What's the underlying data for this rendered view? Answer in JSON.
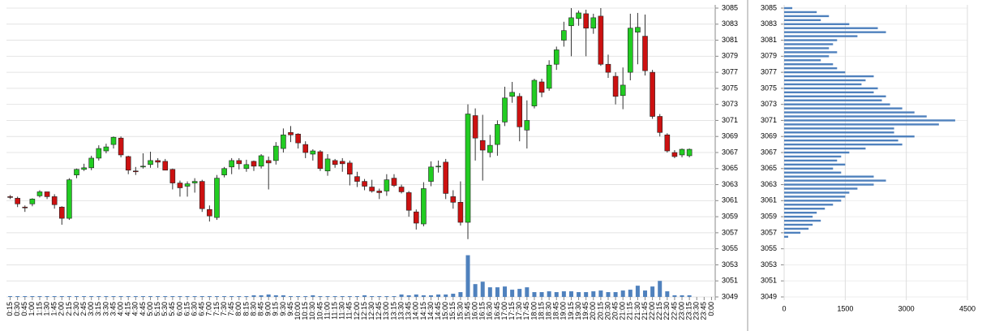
{
  "chart_data": [
    {
      "type": "candlestick",
      "categories": [
        "0:15",
        "0:30",
        "0:45",
        "1:00",
        "1:15",
        "1:30",
        "1:45",
        "2:00",
        "2:15",
        "2:30",
        "2:45",
        "3:00",
        "3:15",
        "3:30",
        "3:45",
        "4:00",
        "4:15",
        "4:30",
        "4:45",
        "5:00",
        "5:15",
        "5:30",
        "5:45",
        "6:00",
        "6:15",
        "6:30",
        "6:45",
        "7:00",
        "7:15",
        "7:30",
        "7:45",
        "8:00",
        "8:15",
        "8:30",
        "8:45",
        "9:00",
        "9:15",
        "9:30",
        "9:45",
        "10:00",
        "10:15",
        "10:30",
        "10:45",
        "11:00",
        "11:15",
        "11:30",
        "11:45",
        "12:00",
        "12:15",
        "12:30",
        "12:45",
        "13:00",
        "13:15",
        "13:30",
        "13:45",
        "14:00",
        "14:15",
        "14:30",
        "14:45",
        "15:00",
        "15:15",
        "15:30",
        "15:45",
        "16:00",
        "16:15",
        "16:30",
        "16:45",
        "17:00",
        "17:15",
        "17:30",
        "17:45",
        "18:00",
        "18:15",
        "18:30",
        "18:45",
        "19:00",
        "19:15",
        "19:30",
        "19:45",
        "20:00",
        "20:15",
        "20:30",
        "20:45",
        "21:00",
        "21:15",
        "21:30",
        "21:45",
        "22:00",
        "22:15",
        "22:30",
        "22:45",
        "23:00",
        "23:15",
        "23:30",
        "23:45",
        "0:00"
      ],
      "ohlc": [
        [
          3061.5,
          3061.7,
          3061.2,
          3061.4
        ],
        [
          3061.3,
          3061.5,
          3060.2,
          3060.6
        ],
        [
          3060.2,
          3060.4,
          3059.6,
          3060.1
        ],
        [
          3060.6,
          3061.3,
          3060.3,
          3061.2
        ],
        [
          3061.6,
          3062.3,
          3061.4,
          3062.1
        ],
        [
          3062.1,
          3062.1,
          3061.2,
          3061.5
        ],
        [
          3061.5,
          3061.8,
          3060.0,
          3060.5
        ],
        [
          3060.2,
          3060.3,
          3058.0,
          3058.8
        ],
        [
          3058.8,
          3063.8,
          3058.6,
          3063.6
        ],
        [
          3064.2,
          3065.0,
          3063.8,
          3064.9
        ],
        [
          3064.9,
          3065.6,
          3064.7,
          3065.1
        ],
        [
          3065.1,
          3066.6,
          3064.8,
          3066.3
        ],
        [
          3066.3,
          3067.9,
          3066.0,
          3067.5
        ],
        [
          3067.2,
          3068.1,
          3066.9,
          3067.7
        ],
        [
          3068.0,
          3069.0,
          3067.5,
          3068.9
        ],
        [
          3068.8,
          3069.0,
          3066.4,
          3066.7
        ],
        [
          3066.5,
          3066.6,
          3064.3,
          3064.8
        ],
        [
          3064.7,
          3065.2,
          3064.2,
          3064.6
        ],
        [
          3065.2,
          3066.9,
          3065.0,
          3065.3
        ],
        [
          3065.5,
          3067.1,
          3065.1,
          3066.0
        ],
        [
          3066.0,
          3066.3,
          3065.1,
          3065.8
        ],
        [
          3065.9,
          3066.2,
          3064.8,
          3064.8
        ],
        [
          3064.9,
          3065.0,
          3062.4,
          3063.2
        ],
        [
          3063.2,
          3063.5,
          3061.5,
          3062.6
        ],
        [
          3062.8,
          3063.4,
          3061.5,
          3063.1
        ],
        [
          3063.2,
          3063.8,
          3062.0,
          3063.4
        ],
        [
          3063.4,
          3063.6,
          3059.6,
          3060.0
        ],
        [
          3059.9,
          3060.4,
          3058.4,
          3059.1
        ],
        [
          3058.9,
          3064.2,
          3058.6,
          3063.8
        ],
        [
          3064.2,
          3065.2,
          3063.9,
          3065.0
        ],
        [
          3065.2,
          3066.3,
          3064.3,
          3066.0
        ],
        [
          3066.0,
          3066.3,
          3064.9,
          3065.6
        ],
        [
          3065.0,
          3066.1,
          3064.6,
          3065.5
        ],
        [
          3065.9,
          3066.0,
          3064.7,
          3065.3
        ],
        [
          3065.3,
          3066.8,
          3065.0,
          3066.6
        ],
        [
          3066.0,
          3066.5,
          3062.4,
          3065.7
        ],
        [
          3066.0,
          3068.3,
          3065.5,
          3067.8
        ],
        [
          3067.5,
          3070.0,
          3067.0,
          3069.2
        ],
        [
          3069.5,
          3070.3,
          3068.3,
          3069.2
        ],
        [
          3069.3,
          3069.4,
          3067.5,
          3068.2
        ],
        [
          3068.0,
          3068.4,
          3066.3,
          3067.0
        ],
        [
          3066.8,
          3067.4,
          3066.0,
          3067.2
        ],
        [
          3067.1,
          3067.3,
          3064.7,
          3065.0
        ],
        [
          3064.7,
          3066.8,
          3064.1,
          3066.2
        ],
        [
          3066.0,
          3066.2,
          3065.1,
          3065.5
        ],
        [
          3065.9,
          3066.3,
          3064.6,
          3065.6
        ],
        [
          3065.7,
          3066.0,
          3062.9,
          3064.3
        ],
        [
          3064.0,
          3064.6,
          3062.7,
          3063.4
        ],
        [
          3063.4,
          3063.7,
          3062.3,
          3062.8
        ],
        [
          3062.7,
          3063.6,
          3062.0,
          3062.2
        ],
        [
          3062.2,
          3062.5,
          3061.2,
          3062.0
        ],
        [
          3062.2,
          3064.3,
          3061.6,
          3063.6
        ],
        [
          3063.8,
          3064.3,
          3062.7,
          3062.9
        ],
        [
          3062.7,
          3063.0,
          3061.9,
          3062.1
        ],
        [
          3062.0,
          3062.2,
          3059.0,
          3059.8
        ],
        [
          3059.6,
          3059.9,
          3057.4,
          3058.2
        ],
        [
          3058.1,
          3063.3,
          3057.8,
          3062.5
        ],
        [
          3063.4,
          3065.9,
          3062.8,
          3065.2
        ],
        [
          3065.3,
          3066.0,
          3064.5,
          3065.3
        ],
        [
          3065.8,
          3066.2,
          3061.2,
          3061.9
        ],
        [
          3061.5,
          3062.3,
          3060.0,
          3060.8
        ],
        [
          3060.8,
          3063.4,
          3057.9,
          3058.3
        ],
        [
          3058.3,
          3073.0,
          3056.2,
          3071.8
        ],
        [
          3071.6,
          3072.5,
          3066.0,
          3068.8
        ],
        [
          3068.5,
          3071.7,
          3063.5,
          3067.3
        ],
        [
          3067.0,
          3069.2,
          3066.4,
          3067.9
        ],
        [
          3068.0,
          3071.0,
          3066.6,
          3070.5
        ],
        [
          3070.8,
          3075.2,
          3070.3,
          3073.8
        ],
        [
          3074.0,
          3075.8,
          3073.2,
          3074.5
        ],
        [
          3074.0,
          3074.4,
          3068.4,
          3070.2
        ],
        [
          3069.8,
          3073.5,
          3067.5,
          3071.0
        ],
        [
          3072.8,
          3076.2,
          3072.5,
          3076.0
        ],
        [
          3075.8,
          3076.2,
          3073.9,
          3074.5
        ],
        [
          3075.0,
          3078.5,
          3074.7,
          3077.9
        ],
        [
          3078.0,
          3080.2,
          3077.3,
          3079.8
        ],
        [
          3081.0,
          3083.3,
          3080.2,
          3082.2
        ],
        [
          3082.8,
          3085.0,
          3079.0,
          3083.8
        ],
        [
          3083.7,
          3084.7,
          3082.8,
          3084.4
        ],
        [
          3084.3,
          3084.8,
          3079.0,
          3082.5
        ],
        [
          3082.5,
          3084.3,
          3081.8,
          3083.8
        ],
        [
          3084.0,
          3085.0,
          3077.8,
          3078.0
        ],
        [
          3078.0,
          3079.2,
          3076.3,
          3077.0
        ],
        [
          3076.5,
          3077.0,
          3073.0,
          3074.0
        ],
        [
          3074.1,
          3077.6,
          3072.4,
          3075.4
        ],
        [
          3077.0,
          3084.3,
          3076.0,
          3082.5
        ],
        [
          3082.0,
          3084.4,
          3078.0,
          3082.6
        ],
        [
          3081.5,
          3084.2,
          3076.6,
          3077.2
        ],
        [
          3077.0,
          3077.3,
          3071.2,
          3071.5
        ],
        [
          3071.5,
          3071.8,
          3069.0,
          3069.5
        ],
        [
          3069.2,
          3069.4,
          3067.0,
          3067.2
        ],
        [
          3067.0,
          3067.3,
          3066.3,
          3066.5
        ],
        [
          3066.7,
          3067.5,
          3066.4,
          3067.4
        ],
        [
          3066.6,
          3067.5,
          3066.4,
          3067.4
        ],
        null,
        null,
        null
      ],
      "volume": [
        0.1,
        0.1,
        0.1,
        0.1,
        0.1,
        0.1,
        0.1,
        0.1,
        0.1,
        0.1,
        0.1,
        0.1,
        0.1,
        0.1,
        0.1,
        0.1,
        0.1,
        0.1,
        0.1,
        0.1,
        0.1,
        0.1,
        0.1,
        0.1,
        0.1,
        0.1,
        0.1,
        0.1,
        0.1,
        0.1,
        0.1,
        0.1,
        0.1,
        0.2,
        0.2,
        0.3,
        0.2,
        0.2,
        0.1,
        0.1,
        0.1,
        0.2,
        0.1,
        0.1,
        0.1,
        0.1,
        0.1,
        0.1,
        0.2,
        0.1,
        0.1,
        0.1,
        0.1,
        0.3,
        0.2,
        0.3,
        0.2,
        0.2,
        0.3,
        0.3,
        0.4,
        0.6,
        5.2,
        1.6,
        1.9,
        1.2,
        1.2,
        1.3,
        0.9,
        1.0,
        1.2,
        0.6,
        0.6,
        0.7,
        0.6,
        0.7,
        0.7,
        0.6,
        0.6,
        0.7,
        0.8,
        0.6,
        0.6,
        0.8,
        0.9,
        1.4,
        0.8,
        1.3,
        2.0,
        0.7,
        0.2,
        0.2,
        0.2,
        null,
        null,
        null
      ],
      "up_color": "#22cc22",
      "down_color": "#cc1111",
      "volume_color": "#4f81bd",
      "ylim": [
        3049,
        3085
      ],
      "yticks": [
        3049,
        3051,
        3053,
        3055,
        3057,
        3059,
        3061,
        3063,
        3065,
        3067,
        3069,
        3071,
        3073,
        3075,
        3077,
        3079,
        3081,
        3083,
        3085
      ],
      "grid": true
    },
    {
      "type": "hbar",
      "levels": [
        3085,
        3084.5,
        3084,
        3083.5,
        3083,
        3082.5,
        3082,
        3081.5,
        3081,
        3080.5,
        3080,
        3079.5,
        3079,
        3078.5,
        3078,
        3077.5,
        3077,
        3076.5,
        3076,
        3075.5,
        3075,
        3074.5,
        3074,
        3073.5,
        3073,
        3072.5,
        3072,
        3071.5,
        3071,
        3070.5,
        3070,
        3069.5,
        3069,
        3068.5,
        3068,
        3067.5,
        3067,
        3066.5,
        3066,
        3065.5,
        3065,
        3064.5,
        3064,
        3063.5,
        3063,
        3062.5,
        3062,
        3061.5,
        3061,
        3060.5,
        3060,
        3059.5,
        3059,
        3058.5,
        3058,
        3057.5,
        3057,
        3056.5
      ],
      "values": [
        200,
        800,
        1100,
        900,
        1600,
        2300,
        2500,
        1800,
        1300,
        1200,
        1100,
        1300,
        1100,
        900,
        1200,
        1300,
        1500,
        2200,
        2000,
        1900,
        2300,
        2200,
        2500,
        2400,
        2600,
        2900,
        3200,
        3500,
        4200,
        3800,
        2700,
        2700,
        3200,
        2800,
        2900,
        2000,
        1600,
        1400,
        1300,
        1500,
        1200,
        1400,
        2200,
        2500,
        2200,
        1800,
        1600,
        1500,
        1400,
        1200,
        1000,
        800,
        700,
        900,
        700,
        600,
        400,
        100
      ],
      "color": "#4f81bd",
      "xlim": [
        0,
        4500
      ],
      "xticks": [
        0,
        1500,
        3000,
        4500
      ],
      "ylim": [
        3049,
        3085
      ],
      "yticks": [
        3049,
        3051,
        3053,
        3055,
        3057,
        3059,
        3061,
        3063,
        3065,
        3067,
        3069,
        3071,
        3073,
        3075,
        3077,
        3079,
        3081,
        3083,
        3085
      ],
      "grid": true
    }
  ]
}
